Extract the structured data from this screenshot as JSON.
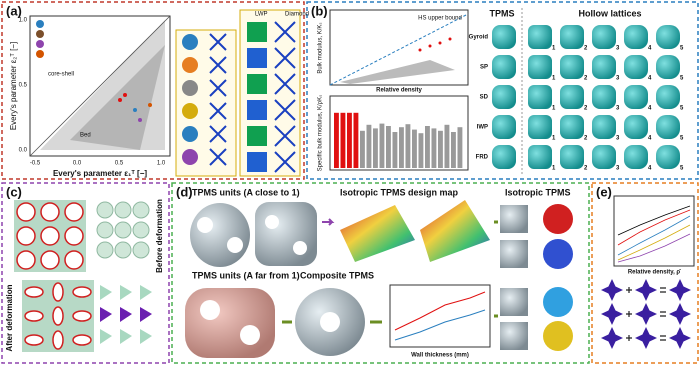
{
  "panel_a": {
    "label": "(a)",
    "x_axis_label": "Every's parameter ε₁ᵀ [−]",
    "y_axis_label": "Every's parameter ε₂ᵀ [−]",
    "x_ticks": [
      "-0.5",
      "0.0",
      "0.5",
      "1.0"
    ],
    "y_ticks": [
      "0.0",
      "0.5",
      "1.0"
    ],
    "notes": [
      "core-shell",
      "Bed",
      "LWP",
      "Diamond"
    ]
  },
  "panel_b": {
    "label": "(b)",
    "upper_y_label": "Bulk modulus, K/Kₛ",
    "lower_y_label": "Specific bulk modulus, K/ρKₛ",
    "x_axis_label": "Relative density",
    "bound_label": "HS upper bound",
    "tpms_title": "TPMS",
    "hollow_title": "Hollow lattices",
    "rows": [
      "Gyroid",
      "SP",
      "SD",
      "IWP",
      "FRD"
    ],
    "columns": [
      "1",
      "2",
      "3",
      "4",
      "5"
    ],
    "bars": {
      "values": [
        0.92,
        0.92,
        0.92,
        0.92,
        0.62,
        0.72,
        0.66,
        0.74,
        0.7,
        0.6,
        0.68,
        0.73,
        0.64,
        0.58,
        0.7,
        0.66,
        0.62,
        0.72,
        0.6,
        0.68
      ],
      "colors": [
        "#e01010",
        "#e01010",
        "#e01010",
        "#e01010",
        "#9a9a9a",
        "#9a9a9a",
        "#9a9a9a",
        "#9a9a9a",
        "#9a9a9a",
        "#9a9a9a",
        "#9a9a9a",
        "#9a9a9a",
        "#9a9a9a",
        "#9a9a9a",
        "#9a9a9a",
        "#9a9a9a",
        "#9a9a9a",
        "#9a9a9a",
        "#9a9a9a",
        "#9a9a9a"
      ]
    }
  },
  "panel_c": {
    "label": "(c)",
    "before": "Before deformation",
    "after": "After deformation"
  },
  "panel_d": {
    "label": "(d)",
    "units_close": "TPMS units (A close to 1)",
    "design_map": "Isotropic TPMS design map",
    "isotropic": "Isotropic TPMS",
    "units_far": "TPMS units (A far from 1)",
    "composite": "Composite TPMS",
    "wall_thickness": "Wall thickness (mm)"
  },
  "panel_e": {
    "label": "(e)",
    "x_axis_label": "Relative density, ρ̄"
  }
}
